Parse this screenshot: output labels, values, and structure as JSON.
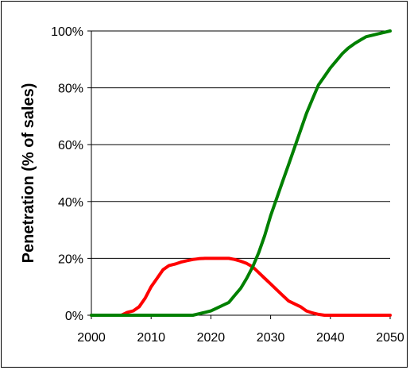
{
  "chart_data": {
    "type": "line",
    "title": "",
    "xlabel": "",
    "ylabel": "Penetration (% of sales)",
    "xlim": [
      2000,
      2050
    ],
    "ylim": [
      0,
      100
    ],
    "x_ticks": [
      "2000",
      "2010",
      "2020",
      "2030",
      "2040",
      "2050"
    ],
    "y_ticks": [
      "0%",
      "20%",
      "40%",
      "60%",
      "80%",
      "100%"
    ],
    "grid": "horizontal",
    "legend": "none",
    "series": [
      {
        "color": "#ff0000",
        "points": [
          [
            2000,
            0
          ],
          [
            2005,
            0
          ],
          [
            2006,
            1
          ],
          [
            2007,
            1.5
          ],
          [
            2008,
            3
          ],
          [
            2009,
            6
          ],
          [
            2010,
            10
          ],
          [
            2011,
            13
          ],
          [
            2012,
            16
          ],
          [
            2013,
            17.5
          ],
          [
            2014,
            18
          ],
          [
            2015,
            18.7
          ],
          [
            2016,
            19.2
          ],
          [
            2017,
            19.6
          ],
          [
            2018,
            19.9
          ],
          [
            2019,
            20
          ],
          [
            2020,
            20
          ],
          [
            2021,
            20
          ],
          [
            2022,
            20
          ],
          [
            2023,
            20
          ],
          [
            2024,
            19.6
          ],
          [
            2025,
            19
          ],
          [
            2026,
            18.2
          ],
          [
            2027,
            17
          ],
          [
            2028,
            15
          ],
          [
            2029,
            13
          ],
          [
            2030,
            11
          ],
          [
            2031,
            9
          ],
          [
            2032,
            7
          ],
          [
            2033,
            5
          ],
          [
            2034,
            4
          ],
          [
            2035,
            3
          ],
          [
            2036,
            1.5
          ],
          [
            2037,
            0.8
          ],
          [
            2038,
            0.3
          ],
          [
            2039,
            0
          ],
          [
            2050,
            0
          ]
        ]
      },
      {
        "color": "#008000",
        "points": [
          [
            2000,
            0
          ],
          [
            2017,
            0
          ],
          [
            2018,
            0.5
          ],
          [
            2019,
            1
          ],
          [
            2020,
            1.5
          ],
          [
            2021,
            2.5
          ],
          [
            2022,
            3.5
          ],
          [
            2023,
            4.5
          ],
          [
            2024,
            7
          ],
          [
            2025,
            9.5
          ],
          [
            2026,
            13
          ],
          [
            2027,
            17
          ],
          [
            2028,
            22
          ],
          [
            2029,
            28
          ],
          [
            2030,
            35
          ],
          [
            2031,
            41
          ],
          [
            2032,
            47
          ],
          [
            2033,
            53
          ],
          [
            2034,
            59
          ],
          [
            2035,
            65
          ],
          [
            2036,
            71
          ],
          [
            2037,
            76
          ],
          [
            2038,
            81
          ],
          [
            2039,
            84
          ],
          [
            2040,
            87
          ],
          [
            2041,
            89.5
          ],
          [
            2042,
            92
          ],
          [
            2043,
            94
          ],
          [
            2044,
            95.5
          ],
          [
            2045,
            96.8
          ],
          [
            2046,
            98
          ],
          [
            2047,
            98.5
          ],
          [
            2048,
            99
          ],
          [
            2049,
            99.5
          ],
          [
            2050,
            100
          ]
        ]
      }
    ]
  }
}
